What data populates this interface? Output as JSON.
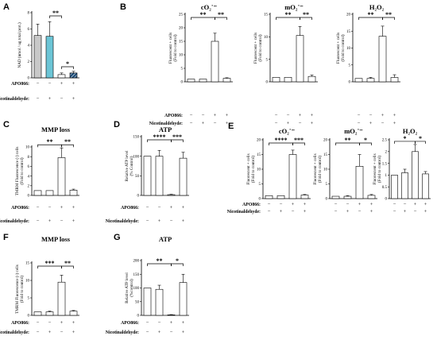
{
  "panel_labels": [
    "A",
    "B",
    "C",
    "D",
    "E",
    "F",
    "G"
  ],
  "conditions": {
    "apo_label": "APO866:",
    "nico_label": "Nicotinaldehyde:",
    "apo": [
      "−",
      "−",
      "+",
      "+"
    ],
    "nico": [
      "−",
      "+",
      "−",
      "+"
    ]
  },
  "chart_data": [
    {
      "id": "A",
      "type": "bar",
      "title": "",
      "ylabel": "NAD (nmol / ug total prot.)",
      "ylim": [
        0,
        8
      ],
      "yticks": [
        0,
        2,
        4,
        6,
        8
      ],
      "values": [
        5.2,
        5.1,
        0.4,
        0.6
      ],
      "errors": [
        1.4,
        1.8,
        0.2,
        0.2
      ],
      "colors": [
        "#c8c8c8",
        "#6cc5d6",
        "#ffffff",
        "#1f4e79"
      ],
      "hatch": [
        false,
        false,
        false,
        true
      ],
      "sig": [
        {
          "a": 1,
          "b": 2,
          "t": "**"
        },
        {
          "a": 2,
          "b": 3,
          "t": "*"
        }
      ]
    },
    {
      "id": "B1",
      "type": "bar",
      "title": "cO₂˙⁻",
      "ylabel": "Fluorescent + cells\n(Fold to control)",
      "ylim": [
        0,
        25
      ],
      "yticks": [
        0,
        5,
        10,
        15,
        20,
        25
      ],
      "values": [
        1,
        1,
        15,
        1.3
      ],
      "errors": [
        0,
        0,
        3,
        0.2
      ],
      "sig": [
        {
          "a": 0,
          "b": 2,
          "t": "**"
        },
        {
          "a": 2,
          "b": 3,
          "t": "**"
        }
      ]
    },
    {
      "id": "B2",
      "type": "bar",
      "title": "mO₂˙⁻",
      "ylabel": "Fluorescent + cells\n(Fold to control)",
      "ylim": [
        0,
        15
      ],
      "yticks": [
        0,
        5,
        10,
        15
      ],
      "values": [
        1,
        1,
        10.3,
        1.2
      ],
      "errors": [
        0,
        0,
        2,
        0.3
      ],
      "sig": [
        {
          "a": 0,
          "b": 2,
          "t": "**"
        },
        {
          "a": 2,
          "b": 3,
          "t": "**"
        }
      ]
    },
    {
      "id": "B3",
      "type": "bar",
      "title": "H₂O₂",
      "ylabel": "Fluorescent + cells\n(Fold to control)",
      "ylim": [
        0,
        20
      ],
      "yticks": [
        0,
        5,
        10,
        15,
        20
      ],
      "values": [
        1,
        1,
        13.5,
        1.3
      ],
      "errors": [
        0,
        0.3,
        3,
        0.8
      ],
      "sig": [
        {
          "a": 0,
          "b": 2,
          "t": "**"
        },
        {
          "a": 2,
          "b": 3,
          "t": "**"
        }
      ]
    },
    {
      "id": "C",
      "type": "bar",
      "title": "MMP loss",
      "ylabel": "TMRM Fluorescence (-) cells\n(Fold to control)",
      "ylim": [
        0,
        10
      ],
      "yticks": [
        0,
        2,
        4,
        6,
        8,
        10
      ],
      "values": [
        1,
        1,
        7.8,
        1.1
      ],
      "errors": [
        0,
        0,
        2,
        0.2
      ],
      "sig": [
        {
          "a": 0,
          "b": 2,
          "t": "**"
        },
        {
          "a": 2,
          "b": 3,
          "t": "**"
        }
      ]
    },
    {
      "id": "D",
      "type": "bar",
      "title": "ATP",
      "ylabel": "Relative ATP level\n(% Control)",
      "ylim": [
        0,
        150
      ],
      "yticks": [
        0,
        50,
        100,
        150
      ],
      "values": [
        100,
        100,
        2,
        95
      ],
      "errors": [
        0,
        15,
        1,
        15
      ],
      "sig": [
        {
          "a": 0,
          "b": 2,
          "t": "****"
        },
        {
          "a": 2,
          "b": 3,
          "t": "***"
        }
      ]
    },
    {
      "id": "E1",
      "type": "bar",
      "title": "cO₂˙⁻",
      "ylabel": "Fluorescent + cells\n(Fold to control)",
      "ylim": [
        0,
        20
      ],
      "yticks": [
        0,
        5,
        10,
        15,
        20
      ],
      "values": [
        1,
        1,
        15,
        1.2
      ],
      "errors": [
        0,
        0,
        1.5,
        0.2
      ],
      "sig": [
        {
          "a": 0,
          "b": 2,
          "t": "****"
        },
        {
          "a": 2,
          "b": 3,
          "t": "***"
        }
      ]
    },
    {
      "id": "E2",
      "type": "bar",
      "title": "mO₂˙⁻",
      "ylabel": "Fluorescent + cells\n(Fold to control)",
      "ylim": [
        0,
        20
      ],
      "yticks": [
        0,
        5,
        10,
        15,
        20
      ],
      "values": [
        0.8,
        0.8,
        11,
        1.1
      ],
      "errors": [
        0,
        0.2,
        4,
        0.3
      ],
      "sig": [
        {
          "a": 0,
          "b": 2,
          "t": "**"
        },
        {
          "a": 2,
          "b": 3,
          "t": "*"
        }
      ]
    },
    {
      "id": "E3",
      "type": "bar",
      "title": "H₂O₂",
      "ylabel": "Fluorescent + cells\n(Fold to control)",
      "ylim": [
        0,
        2.5
      ],
      "yticks": [
        0,
        0.5,
        1,
        1.5,
        2,
        2.5
      ],
      "values": [
        1,
        1.1,
        2,
        1.05
      ],
      "errors": [
        0,
        0.15,
        0.3,
        0.1
      ],
      "sig": [
        {
          "a": 0,
          "b": 2,
          "t": "*"
        },
        {
          "a": 2,
          "b": 3,
          "t": "*"
        }
      ]
    },
    {
      "id": "F",
      "type": "bar",
      "title": "MMP loss",
      "ylabel": "TMRM Fluorescence (-) cells\n(Fold to control)",
      "ylim": [
        0,
        15
      ],
      "yticks": [
        0,
        5,
        10,
        15
      ],
      "values": [
        1,
        1,
        9.5,
        1.2
      ],
      "errors": [
        0,
        0.2,
        2,
        0.2
      ],
      "sig": [
        {
          "a": 0,
          "b": 2,
          "t": "***"
        },
        {
          "a": 2,
          "b": 3,
          "t": "**"
        }
      ]
    },
    {
      "id": "G",
      "type": "bar",
      "title": "ATP",
      "ylabel": "Relative ATP level\n(%control)",
      "ylim": [
        0,
        200
      ],
      "yticks": [
        0,
        50,
        100,
        150,
        200
      ],
      "values": [
        100,
        95,
        2,
        120
      ],
      "errors": [
        0,
        15,
        1,
        30
      ],
      "sig": [
        {
          "a": 0,
          "b": 2,
          "t": "**"
        },
        {
          "a": 2,
          "b": 3,
          "t": "*"
        }
      ]
    }
  ]
}
